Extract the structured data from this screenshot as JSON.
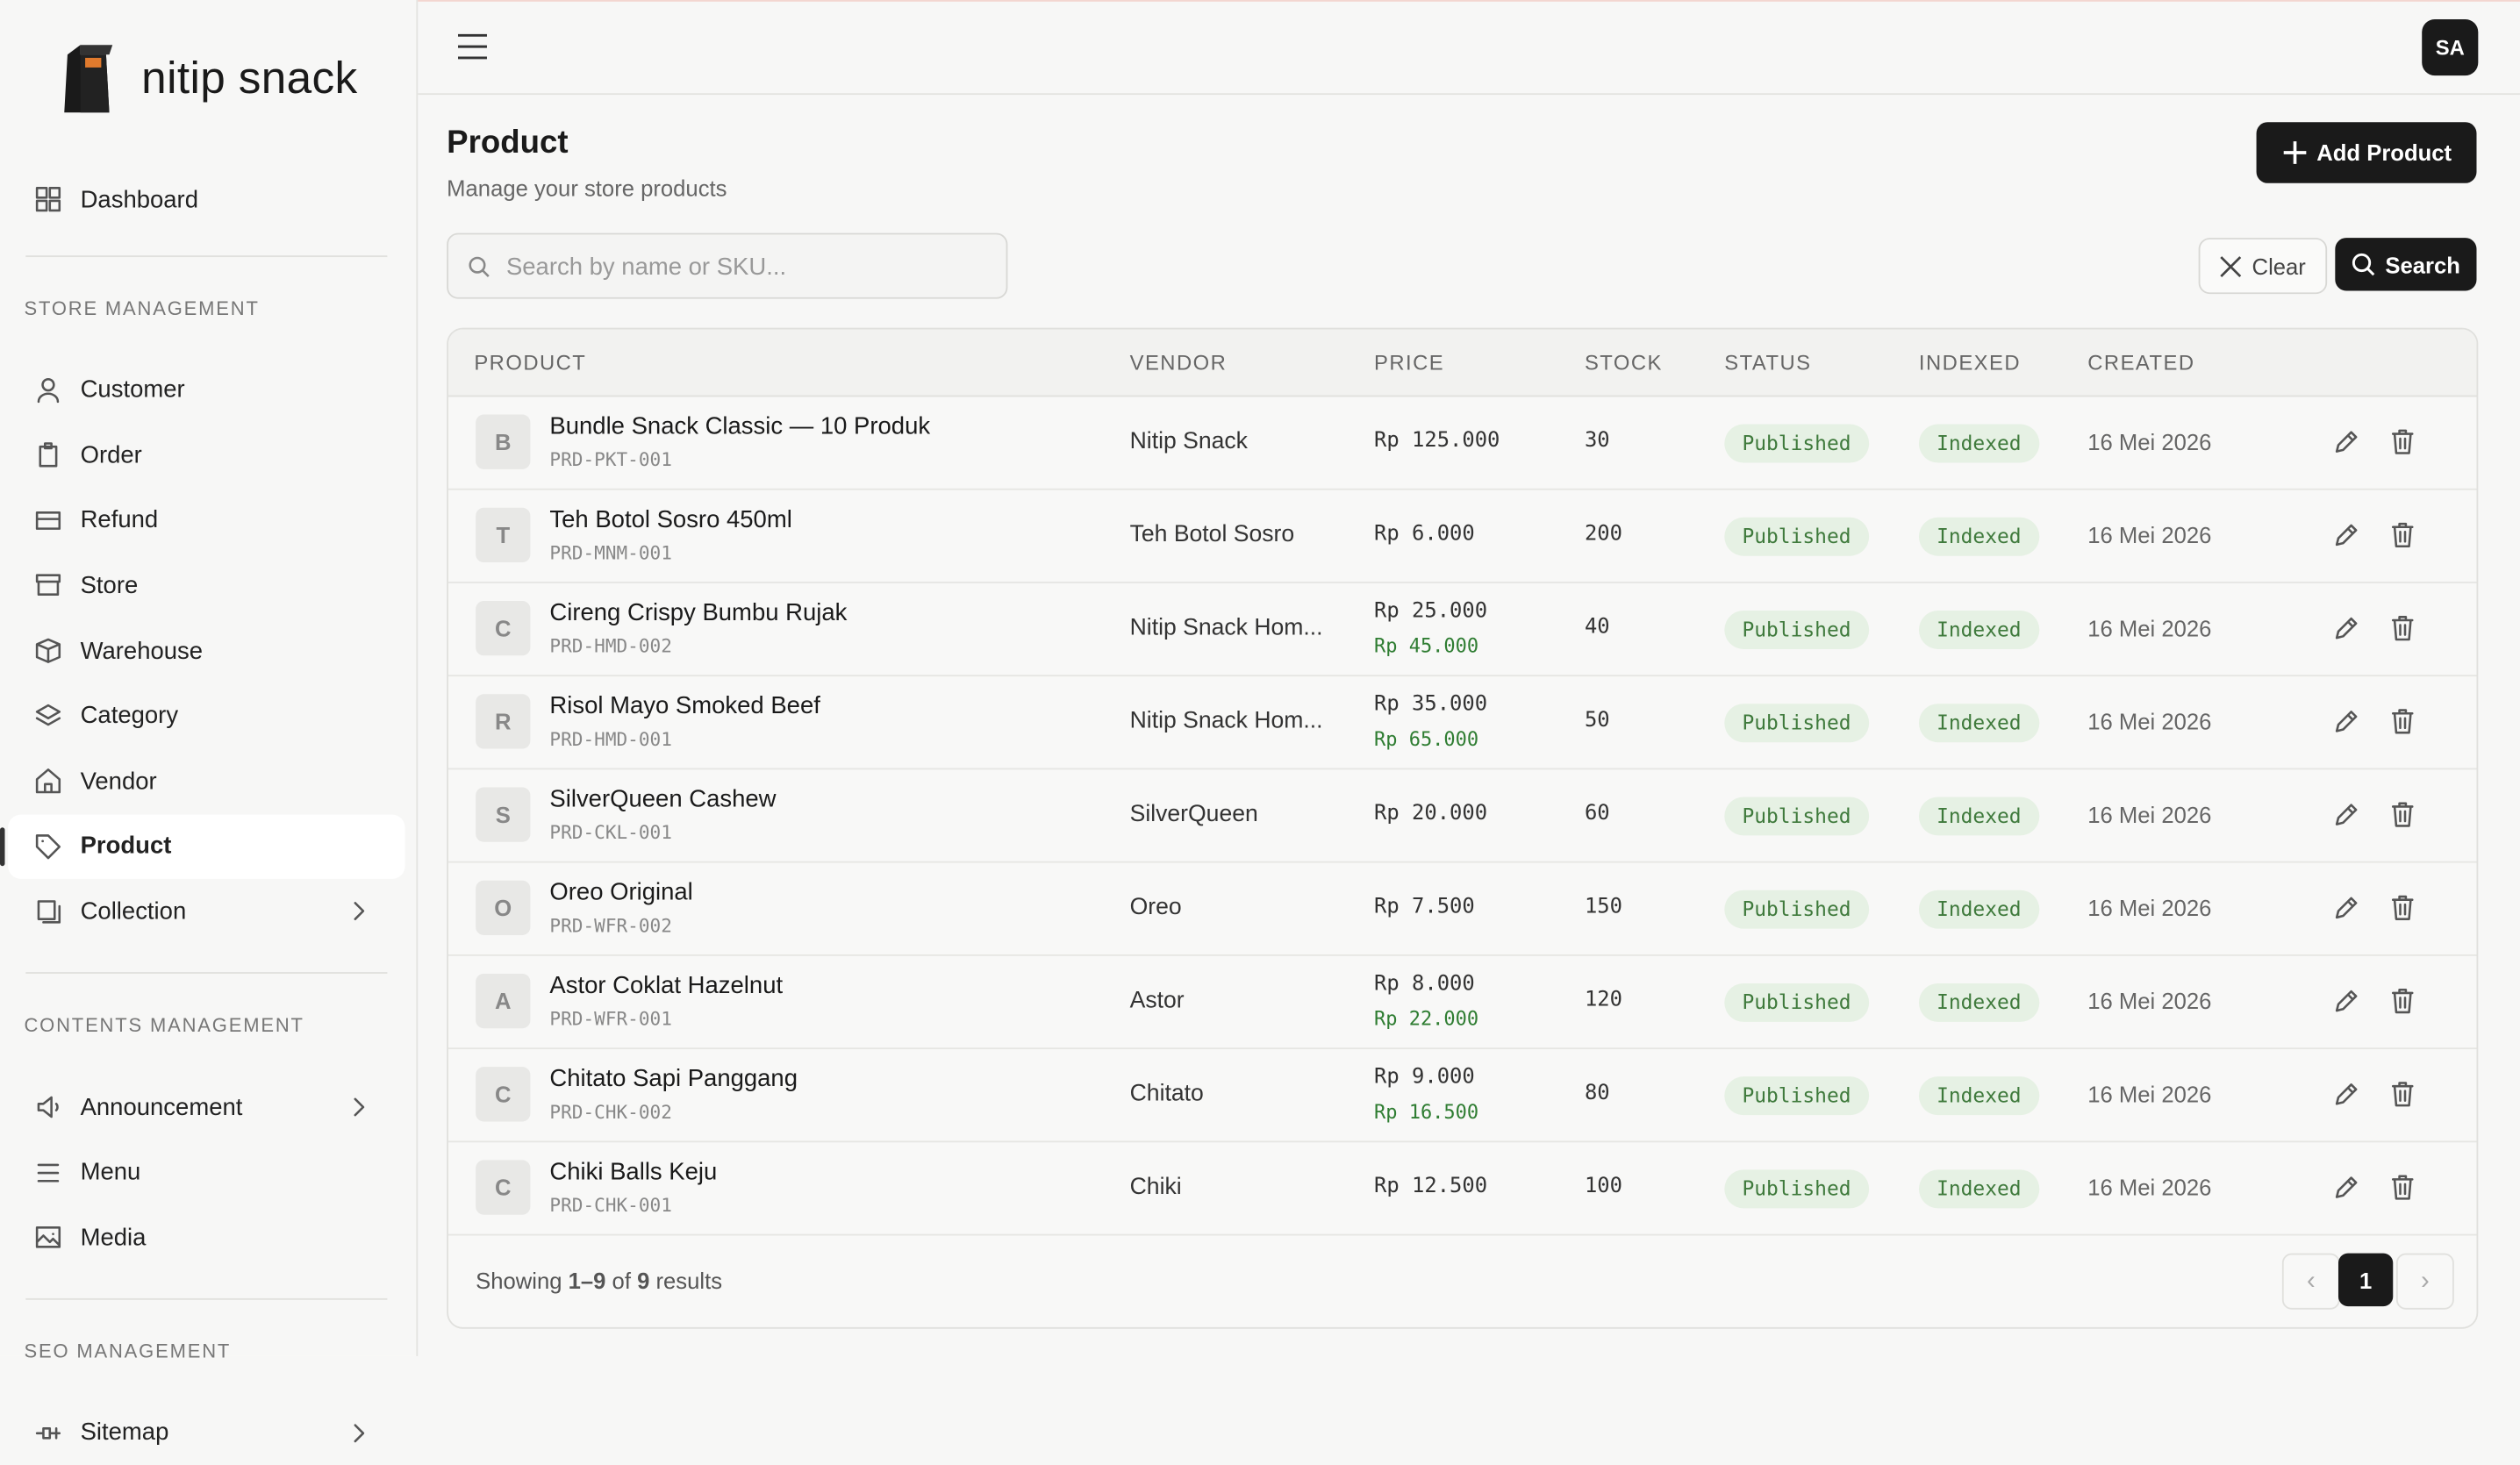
{
  "sidebar": {
    "logo": "nitip snack",
    "top_items": [
      {
        "label": "Dashboard"
      }
    ],
    "sections": [
      {
        "title": "STORE MANAGEMENT",
        "items": [
          {
            "label": "Customer"
          },
          {
            "label": "Order"
          },
          {
            "label": "Refund"
          },
          {
            "label": "Store"
          },
          {
            "label": "Warehouse"
          },
          {
            "label": "Category"
          },
          {
            "label": "Vendor"
          },
          {
            "label": "Product",
            "active": true
          },
          {
            "label": "Collection",
            "expandable": true
          }
        ]
      },
      {
        "title": "CONTENTS MANAGEMENT",
        "items": [
          {
            "label": "Announcement",
            "expandable": true
          },
          {
            "label": "Menu"
          },
          {
            "label": "Media"
          }
        ]
      },
      {
        "title": "SEO MANAGEMENT",
        "items": [
          {
            "label": "Sitemap",
            "expandable": true
          }
        ]
      }
    ]
  },
  "header": {
    "avatar": "SA"
  },
  "page": {
    "title": "Product",
    "subtitle": "Manage your store products",
    "add_button": "Add Product",
    "search_placeholder": "Search by name or SKU...",
    "clear_button": "Clear",
    "search_button": "Search"
  },
  "table": {
    "columns": [
      "PRODUCT",
      "VENDOR",
      "PRICE",
      "STOCK",
      "STATUS",
      "INDEXED",
      "CREATED"
    ],
    "rows": [
      {
        "initial": "B",
        "name": "Bundle Snack Classic — 10 Produk",
        "sku": "PRD-PKT-001",
        "vendor": "Nitip Snack",
        "price": "Rp 125.000",
        "stock": 30,
        "status": "Published",
        "indexed": "Indexed",
        "created": "16 Mei 2026"
      },
      {
        "initial": "T",
        "name": "Teh Botol Sosro 450ml",
        "sku": "PRD-MNM-001",
        "vendor": "Teh Botol Sosro",
        "price": "Rp 6.000",
        "stock": 200,
        "status": "Published",
        "indexed": "Indexed",
        "created": "16 Mei 2026"
      },
      {
        "initial": "C",
        "name": "Cireng Crispy Bumbu Rujak",
        "sku": "PRD-HMD-002",
        "vendor": "Nitip Snack Hom...",
        "price": "Rp 25.000",
        "second_price": "Rp 45.000",
        "stock": 40,
        "status": "Published",
        "indexed": "Indexed",
        "created": "16 Mei 2026"
      },
      {
        "initial": "R",
        "name": "Risol Mayo Smoked Beef",
        "sku": "PRD-HMD-001",
        "vendor": "Nitip Snack Hom...",
        "price": "Rp 35.000",
        "second_price": "Rp 65.000",
        "stock": 50,
        "status": "Published",
        "indexed": "Indexed",
        "created": "16 Mei 2026"
      },
      {
        "initial": "S",
        "name": "SilverQueen Cashew",
        "sku": "PRD-CKL-001",
        "vendor": "SilverQueen",
        "price": "Rp 20.000",
        "stock": 60,
        "status": "Published",
        "indexed": "Indexed",
        "created": "16 Mei 2026"
      },
      {
        "initial": "O",
        "name": "Oreo Original",
        "sku": "PRD-WFR-002",
        "vendor": "Oreo",
        "price": "Rp 7.500",
        "stock": 150,
        "status": "Published",
        "indexed": "Indexed",
        "created": "16 Mei 2026"
      },
      {
        "initial": "A",
        "name": "Astor Coklat Hazelnut",
        "sku": "PRD-WFR-001",
        "vendor": "Astor",
        "price": "Rp 8.000",
        "second_price": "Rp 22.000",
        "stock": 120,
        "status": "Published",
        "indexed": "Indexed",
        "created": "16 Mei 2026"
      },
      {
        "initial": "C",
        "name": "Chitato Sapi Panggang",
        "sku": "PRD-CHK-002",
        "vendor": "Chitato",
        "price": "Rp 9.000",
        "second_price": "Rp 16.500",
        "stock": 80,
        "status": "Published",
        "indexed": "Indexed",
        "created": "16 Mei 2026"
      },
      {
        "initial": "C",
        "name": "Chiki Balls Keju",
        "sku": "PRD-CHK-001",
        "vendor": "Chiki",
        "price": "Rp 12.500",
        "stock": 100,
        "status": "Published",
        "indexed": "Indexed",
        "created": "16 Mei 2026"
      }
    ]
  },
  "footer": {
    "showing": "Showing",
    "range": "1–9",
    "of": "of",
    "total": "9",
    "results": "results",
    "page": "1"
  }
}
